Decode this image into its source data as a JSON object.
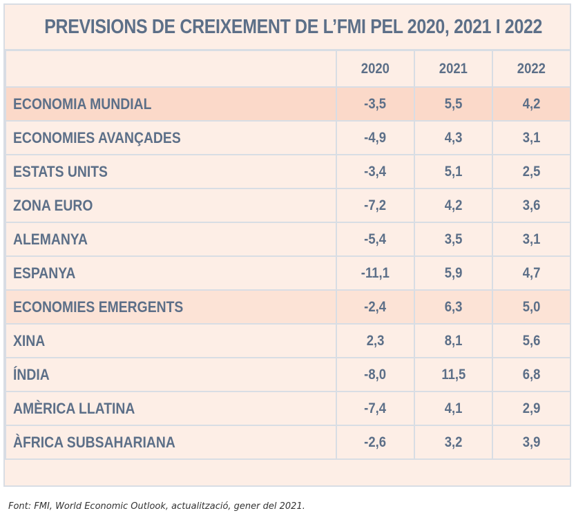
{
  "title": "PREVISIONS DE CREIXEMENT DE L’FMI PEL 2020, 2021 I 2022",
  "source": "Font: FMI, World Economic Outlook, actualització, gener del 2021.",
  "chart_data": {
    "type": "table",
    "title": "PREVISIONS DE CREIXEMENT DE L’FMI PEL 2020, 2021 I 2022",
    "columns": [
      "",
      "2020",
      "2021",
      "2022"
    ],
    "rows": [
      {
        "label": "ECONOMIA MUNDIAL",
        "values": [
          "-3,5",
          "5,5",
          "4,2"
        ]
      },
      {
        "label": "ECONOMIES AVANÇADES",
        "values": [
          "-4,9",
          "4,3",
          "3,1"
        ]
      },
      {
        "label": "ESTATS UNITS",
        "values": [
          "-3,4",
          "5,1",
          "2,5"
        ]
      },
      {
        "label": "ZONA EURO",
        "values": [
          "-7,2",
          "4,2",
          "3,6"
        ]
      },
      {
        "label": "ALEMANYA",
        "values": [
          "-5,4",
          "3,5",
          "3,1"
        ]
      },
      {
        "label": "ESPANYA",
        "values": [
          "-11,1",
          "5,9",
          "4,7"
        ]
      },
      {
        "label": "ECONOMIES EMERGENTS",
        "values": [
          "-2,4",
          "6,3",
          "5,0"
        ]
      },
      {
        "label": "XINA",
        "values": [
          "2,3",
          "8,1",
          "5,6"
        ]
      },
      {
        "label": "ÍNDIA",
        "values": [
          "-8,0",
          "11,5",
          "6,8"
        ]
      },
      {
        "label": "AMÈRICA LLATINA",
        "values": [
          "-7,4",
          "4,1",
          "2,9"
        ]
      },
      {
        "label": "ÀFRICA SUBSAHARIANA",
        "values": [
          "-2,6",
          "3,2",
          "3,9"
        ]
      }
    ]
  },
  "colors": {
    "text": "#5c6f88",
    "background": "#fdeee6",
    "highlight_world": "#fbd9c9",
    "highlight_emerging": "#fce3d6",
    "grid": "#d8dde4"
  }
}
